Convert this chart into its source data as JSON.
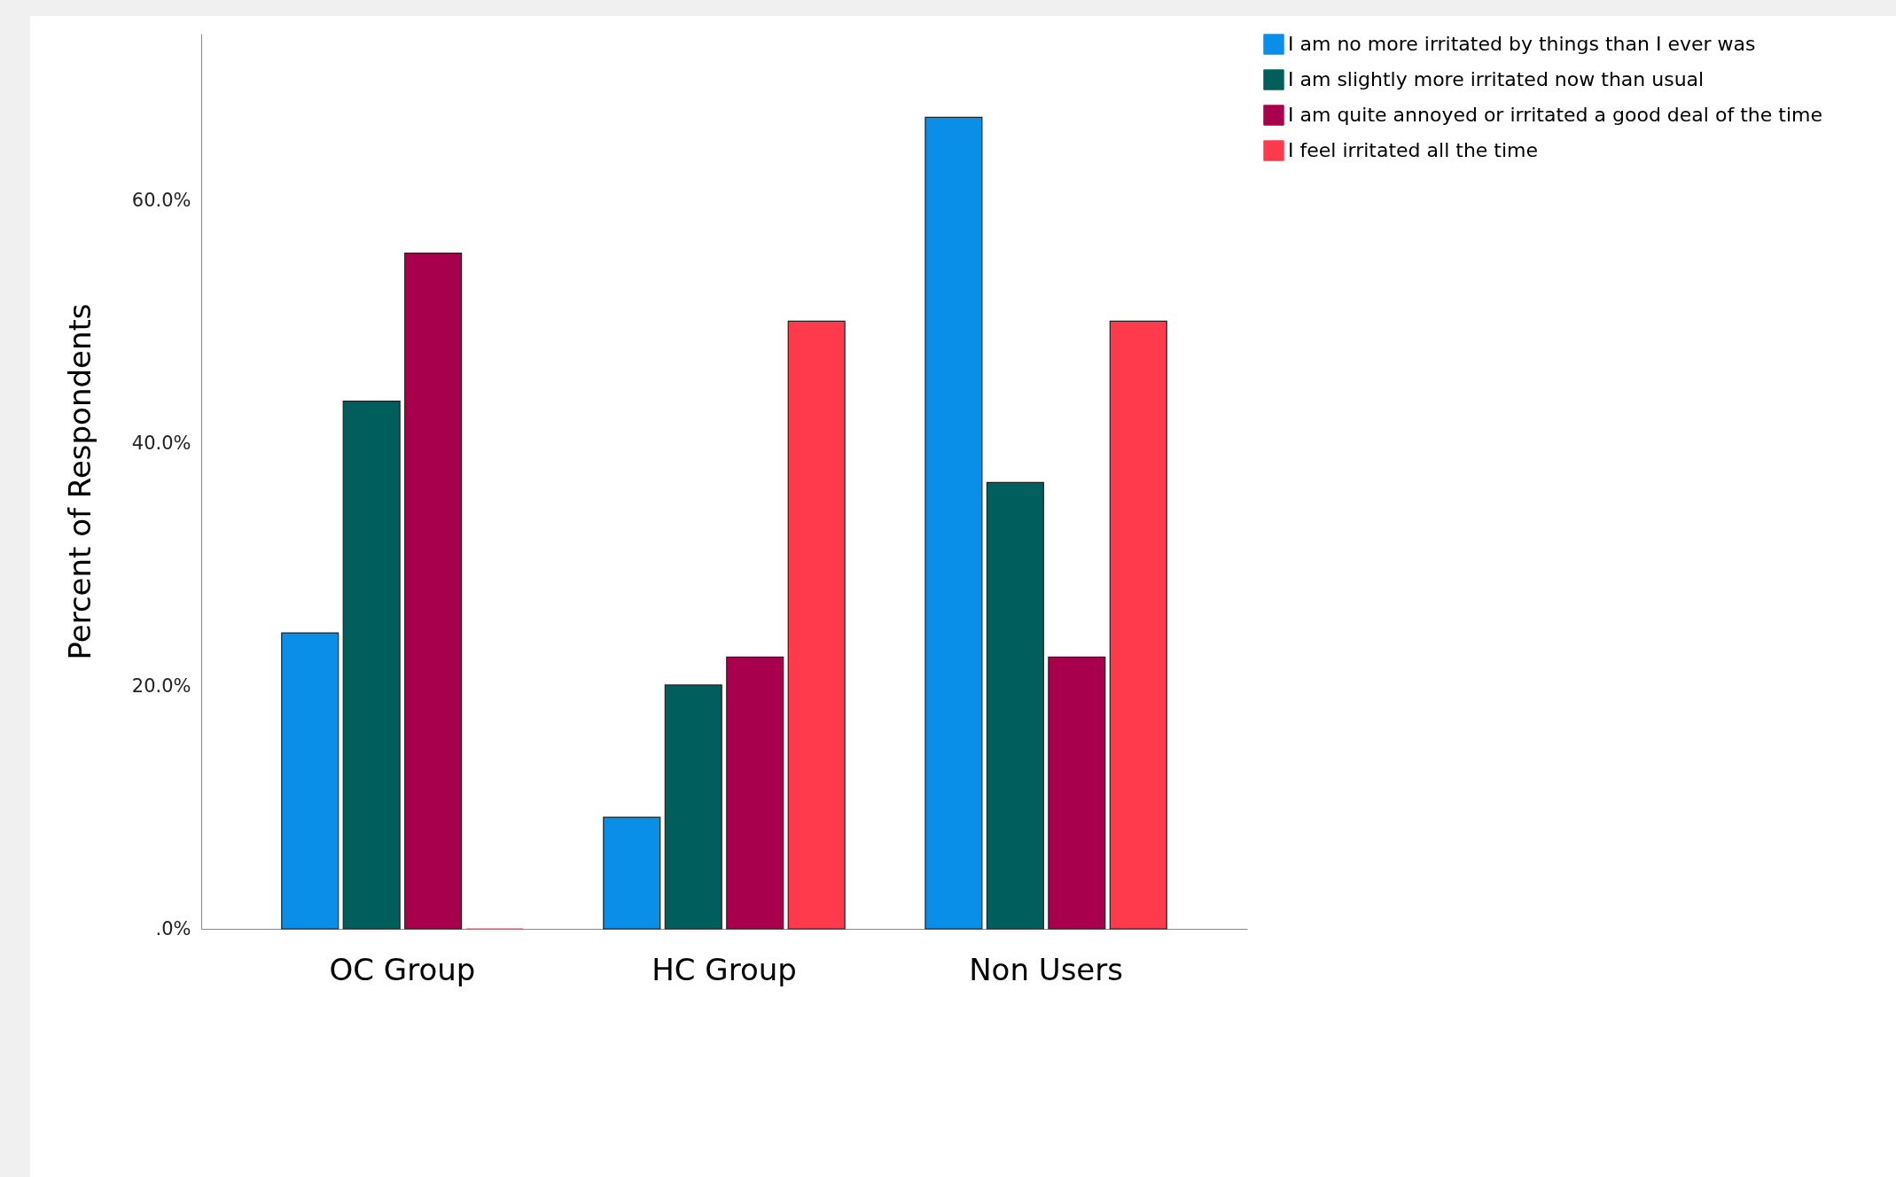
{
  "chart_data": {
    "type": "bar",
    "ylabel": "Percent of Respondents",
    "categories": [
      "OC Group",
      "HC Group",
      "Non Users"
    ],
    "series": [
      {
        "name": "I am no more irritated by things than I ever was",
        "color": "#0a8fe8",
        "values": [
          24.4,
          9.2,
          66.9
        ]
      },
      {
        "name": "I am slightly more irritated now than usual",
        "color": "#005f5c",
        "values": [
          43.5,
          20.1,
          36.8
        ]
      },
      {
        "name": "I am quite annoyed or irritated a good deal of the time",
        "color": "#a8004c",
        "values": [
          55.7,
          22.4,
          22.4
        ]
      },
      {
        "name": "I feel irritated all the time",
        "color": "#ff3a4c",
        "values": [
          0,
          50.1,
          50.1
        ]
      }
    ],
    "ylim": [
      0,
      73.8
    ],
    "yticks": [
      {
        "value": 0,
        "label": ".0%"
      },
      {
        "value": 20,
        "label": "20.0%"
      },
      {
        "value": 40,
        "label": "40.0%"
      },
      {
        "value": 60,
        "label": "60.0%"
      }
    ],
    "legend": "top right",
    "grid": false
  }
}
